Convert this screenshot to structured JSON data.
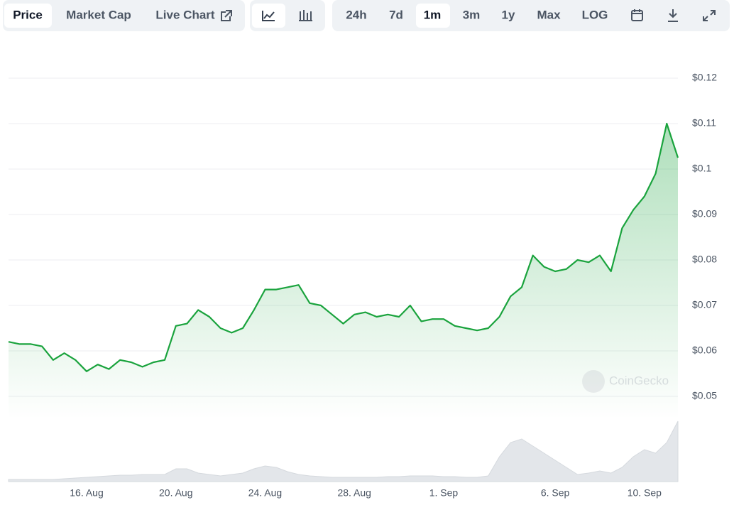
{
  "toolbar": {
    "views": [
      "Price",
      "Market Cap",
      "Live Chart"
    ],
    "ranges": [
      "24h",
      "7d",
      "1m",
      "3m",
      "1y",
      "Max",
      "LOG"
    ],
    "watermark": "CoinGecko"
  },
  "chart_data": {
    "type": "line",
    "categories": [
      null,
      null,
      null,
      null,
      null,
      null,
      null,
      "16. Aug",
      null,
      null,
      null,
      null,
      null,
      null,
      null,
      "20. Aug",
      null,
      null,
      null,
      null,
      null,
      null,
      null,
      "24. Aug",
      null,
      null,
      null,
      null,
      null,
      null,
      null,
      "28. Aug",
      null,
      null,
      null,
      null,
      null,
      null,
      null,
      "1. Sep",
      null,
      null,
      null,
      null,
      null,
      null,
      null,
      null,
      null,
      "6. Sep",
      null,
      null,
      null,
      null,
      null,
      null,
      null,
      "10. Sep",
      null,
      null,
      null
    ],
    "series": [
      {
        "color": "#1aa33d",
        "values": [
          0.062,
          0.0615,
          0.0615,
          0.061,
          0.058,
          0.0595,
          0.058,
          0.0555,
          0.057,
          0.056,
          0.058,
          0.0575,
          0.0565,
          0.0575,
          0.058,
          0.0655,
          0.066,
          0.069,
          0.0675,
          0.065,
          0.064,
          0.065,
          0.069,
          0.0735,
          0.0735,
          0.074,
          0.0745,
          0.0705,
          0.07,
          0.068,
          0.066,
          0.068,
          0.0685,
          0.0675,
          0.068,
          0.0675,
          0.07,
          0.0665,
          0.067,
          0.067,
          0.0655,
          0.065,
          0.0645,
          0.065,
          0.0675,
          0.072,
          0.074,
          0.081,
          0.0785,
          0.0775,
          0.078,
          0.08,
          0.0795,
          0.081,
          0.0775,
          0.087,
          0.091,
          0.094,
          0.099,
          0.11,
          0.1025
        ]
      },
      {
        "color": "#e3e6ea",
        "axis": "y2",
        "values": [
          3,
          3,
          3,
          3,
          3,
          4,
          5,
          6,
          7,
          8,
          9,
          9,
          10,
          10,
          10,
          18,
          18,
          12,
          10,
          8,
          10,
          12,
          18,
          22,
          20,
          14,
          10,
          8,
          7,
          6,
          6,
          6,
          6,
          6,
          7,
          7,
          8,
          8,
          8,
          7,
          7,
          6,
          6,
          8,
          35,
          55,
          60,
          50,
          40,
          30,
          20,
          10,
          12,
          15,
          12,
          20,
          35,
          45,
          40,
          55,
          85
        ]
      }
    ],
    "ylim": [
      0.045,
      0.125
    ],
    "yticks": [
      {
        "value": 0.05,
        "label": "$0.05"
      },
      {
        "value": 0.06,
        "label": "$0.06"
      },
      {
        "value": 0.07,
        "label": "$0.07"
      },
      {
        "value": 0.08,
        "label": "$0.08"
      },
      {
        "value": 0.09,
        "label": "$0.09"
      },
      {
        "value": 0.1,
        "label": "$0.1"
      },
      {
        "value": 0.11,
        "label": "$0.11"
      },
      {
        "value": 0.12,
        "label": "$0.12"
      }
    ],
    "y2lim": [
      0,
      100
    ],
    "grid": true
  }
}
